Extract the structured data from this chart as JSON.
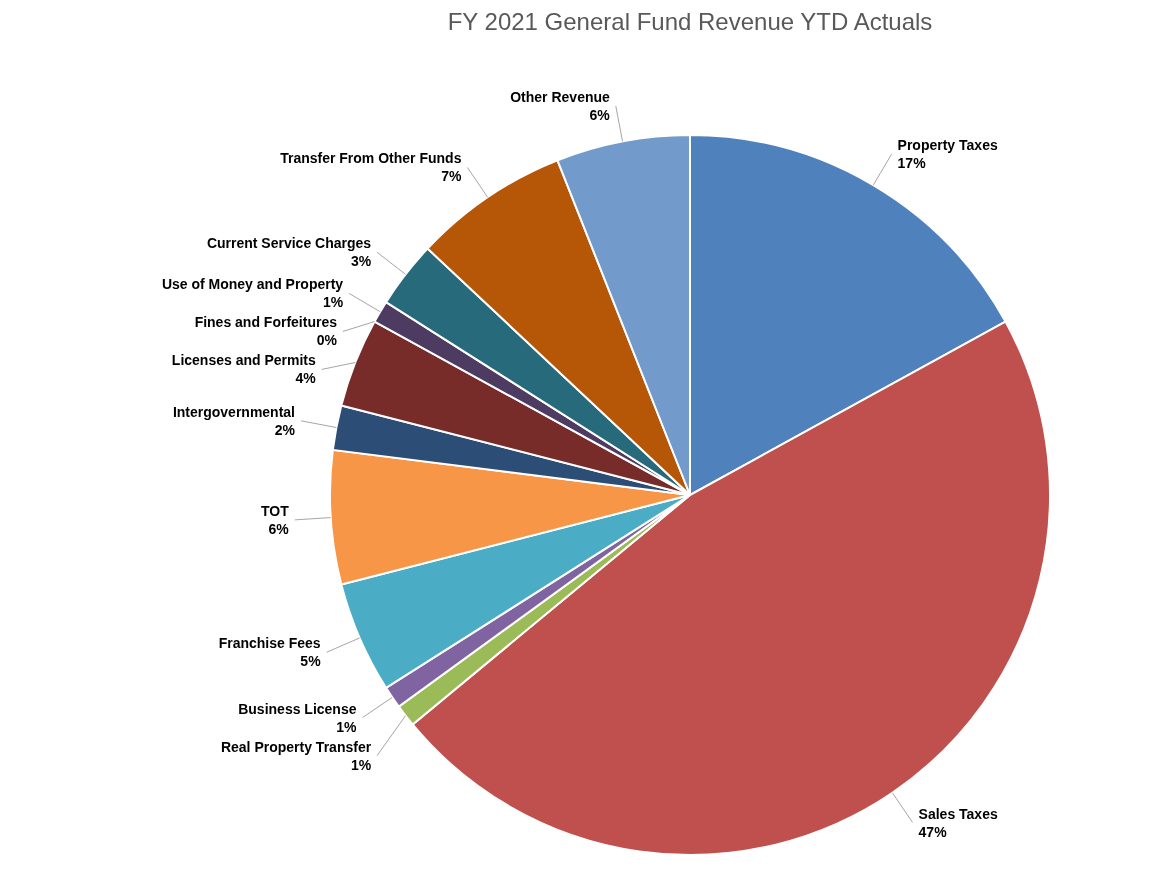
{
  "chart_data": {
    "type": "pie",
    "title": "FY 2021 General Fund Revenue YTD Actuals",
    "categories": [
      "Property Taxes",
      "Sales Taxes",
      "Real Property Transfer",
      "Business License",
      "Franchise Fees",
      "TOT",
      "Intergovernmental",
      "Licenses and Permits",
      "Fines and Forfeitures",
      "Use of Money and Property",
      "Current Service Charges",
      "Transfer From Other Funds",
      "Other Revenue"
    ],
    "values": [
      17,
      47,
      1,
      1,
      5,
      6,
      2,
      4,
      0,
      1,
      3,
      7,
      6
    ],
    "value_labels": [
      "17%",
      "47%",
      "1%",
      "1%",
      "5%",
      "6%",
      "2%",
      "4%",
      "0%",
      "1%",
      "3%",
      "7%",
      "6%"
    ],
    "colors": [
      "#4f81bd",
      "#c0504d",
      "#9bbb59",
      "#8064a2",
      "#4bacc6",
      "#f79646",
      "#2c4d75",
      "#772c2a",
      null,
      "#4d3b62",
      "#276a7c",
      "#b65708",
      "#729aca"
    ]
  }
}
